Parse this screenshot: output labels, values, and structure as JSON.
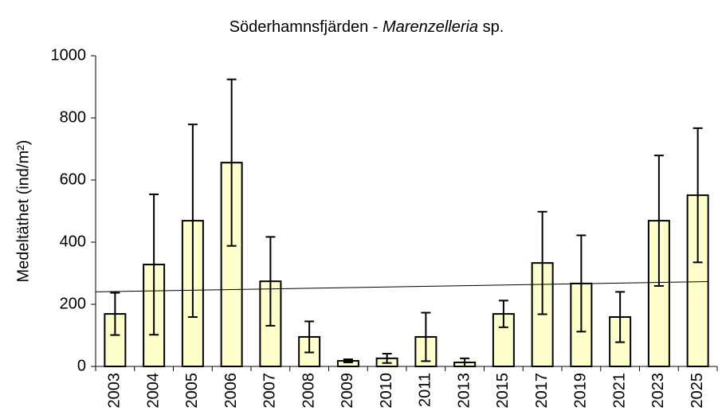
{
  "chart_data": {
    "type": "bar",
    "title_parts": [
      "Söderhamnsfjärden - ",
      "Marenzelleria",
      " sp."
    ],
    "y_label": "Medeltäthet (ind/m²)",
    "categories": [
      "2003",
      "2004",
      "2005",
      "2006",
      "2007",
      "2008",
      "2009",
      "2010",
      "2011",
      "2013",
      "2015",
      "2017",
      "2019",
      "2021",
      "2023",
      "2025"
    ],
    "values": [
      169,
      328,
      469,
      656,
      274,
      95,
      18,
      26,
      95,
      13,
      169,
      333,
      267,
      159,
      469,
      551
    ],
    "errors": [
      68,
      226,
      310,
      268,
      143,
      50,
      5,
      15,
      78,
      13,
      43,
      165,
      155,
      81,
      210,
      216
    ],
    "color": "#ffffcc",
    "trendline": [
      240,
      273
    ],
    "ylim": [
      0,
      1000
    ],
    "yticks": [
      0,
      200,
      400,
      600,
      800,
      1000
    ]
  }
}
